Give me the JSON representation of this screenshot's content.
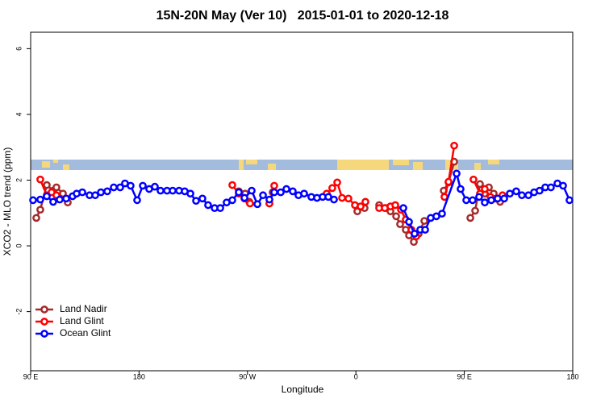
{
  "chart_data": {
    "type": "line",
    "title": "15N-20N May (Ver 10)   2015-01-01 to 2020-12-18",
    "x_label": "Longitude",
    "y_label": "XCO2 - MLO trend (ppm)",
    "xlim": [
      90,
      540
    ],
    "ylim": [
      -3.8,
      6.5
    ],
    "xticks": [
      {
        "value": 90,
        "label": "90 E"
      },
      180,
      {
        "value": 270,
        "label": "90 W"
      },
      {
        "value": 360,
        "label": "0"
      },
      {
        "value": 450,
        "label": "90 E"
      },
      {
        "value": 540,
        "label": "180"
      }
    ],
    "yticks": [
      6,
      4,
      2,
      0,
      -2
    ],
    "grid": false,
    "legend": "bottom-left",
    "series": [
      {
        "name": "Land Nadir",
        "color": "#a52a2a",
        "x": [
          94.7,
          98.0,
          103.4,
          108.7,
          111.4,
          116.8,
          120.8,
          null,
          262.8,
          268.1,
          271.5,
          null,
          288.2,
          290.9,
          null,
          361.2,
          367.2,
          null,
          379.3,
          384.6,
          388.7,
          393.4,
          396.7,
          401.4,
          404.1,
          408.1,
          412.1,
          416.8,
          null,
          432.9,
          436.9,
          441.6,
          null,
          455.0,
          459.0,
          463.0,
          467.0,
          470.4,
          474.4,
          479.7
        ],
        "values": [
          0.85,
          1.1,
          1.85,
          1.68,
          1.78,
          1.59,
          1.32,
          null,
          1.66,
          1.59,
          1.34,
          null,
          1.29,
          1.63,
          null,
          1.05,
          1.15,
          null,
          1.24,
          1.15,
          1.05,
          0.9,
          0.66,
          0.49,
          0.32,
          0.12,
          0.37,
          0.76,
          null,
          1.68,
          1.93,
          2.56,
          null,
          0.85,
          1.07,
          1.88,
          1.59,
          1.78,
          1.59,
          1.34
        ]
      },
      {
        "name": "Land Glint",
        "color": "#ff0000",
        "x": [
          98.0,
          103.4,
          107.4,
          111.4,
          null,
          257.4,
          262.8,
          267.5,
          272.1,
          null,
          288.2,
          292.2,
          null,
          335.8,
          340.4,
          344.5,
          348.5,
          353.8,
          359.2,
          363.9,
          367.9,
          null,
          379.3,
          384.0,
          388.7,
          392.7,
          397.4,
          401.4,
          406.1,
          410.1,
          null,
          433.5,
          436.9,
          441.6,
          null,
          457.6,
          463.0,
          467.0,
          471.7,
          476.4,
          481.7
        ],
        "values": [
          2.02,
          1.54,
          1.63,
          1.54,
          null,
          1.85,
          1.59,
          1.44,
          1.29,
          null,
          1.29,
          1.83,
          null,
          1.59,
          1.76,
          1.93,
          1.46,
          1.44,
          1.24,
          1.2,
          1.34,
          null,
          1.15,
          1.15,
          1.2,
          1.24,
          1.1,
          0.8,
          0.49,
          0.29,
          null,
          1.49,
          1.95,
          3.05,
          null,
          2.02,
          1.59,
          1.73,
          1.49,
          1.44,
          1.54
        ]
      },
      {
        "name": "Ocean Glint",
        "color": "#0000ff",
        "x": [
          92.0,
          98.0,
          103.4,
          108.7,
          114.1,
          119.5,
          124.8,
          128.2,
          132.9,
          138.9,
          143.6,
          148.3,
          153.6,
          159.0,
          164.3,
          168.3,
          173.0,
          178.4,
          183.1,
          188.4,
          193.1,
          197.8,
          203.2,
          207.9,
          213.2,
          217.9,
          222.6,
          227.3,
          232.6,
          237.3,
          242.7,
          247.4,
          252.7,
          257.4,
          262.8,
          267.5,
          273.5,
          278.2,
          282.9,
          288.2,
          292.2,
          297.6,
          302.3,
          307.6,
          312.3,
          317.0,
          323.0,
          327.7,
          332.4,
          337.1,
          341.8,
          null,
          399.4,
          404.1,
          408.7,
          413.4,
          417.5,
          422.1,
          426.8,
          431.5,
          443.6,
          446.9,
          451.6,
          456.9,
          462.3,
          467.0,
          472.4,
          477.7,
          483.1,
          487.8,
          493.1,
          497.8,
          503.2,
          507.9,
          512.5,
          517.2,
          521.9,
          527.3,
          532.0,
          537.3
        ],
        "values": [
          1.39,
          1.41,
          1.51,
          1.34,
          1.41,
          1.44,
          1.51,
          1.59,
          1.63,
          1.54,
          1.54,
          1.63,
          1.66,
          1.78,
          1.78,
          1.9,
          1.83,
          1.39,
          1.83,
          1.73,
          1.8,
          1.68,
          1.68,
          1.68,
          1.68,
          1.66,
          1.59,
          1.37,
          1.44,
          1.24,
          1.15,
          1.15,
          1.32,
          1.39,
          1.63,
          1.46,
          1.68,
          1.27,
          1.54,
          1.41,
          1.63,
          1.63,
          1.73,
          1.66,
          1.54,
          1.59,
          1.49,
          1.46,
          1.49,
          1.49,
          1.41,
          null,
          1.15,
          0.73,
          0.37,
          0.49,
          0.49,
          0.85,
          0.9,
          0.98,
          2.2,
          1.73,
          1.39,
          1.39,
          1.49,
          1.32,
          1.39,
          1.44,
          1.44,
          1.59,
          1.66,
          1.54,
          1.54,
          1.63,
          1.68,
          1.78,
          1.78,
          1.9,
          1.83,
          1.39
        ]
      }
    ]
  }
}
